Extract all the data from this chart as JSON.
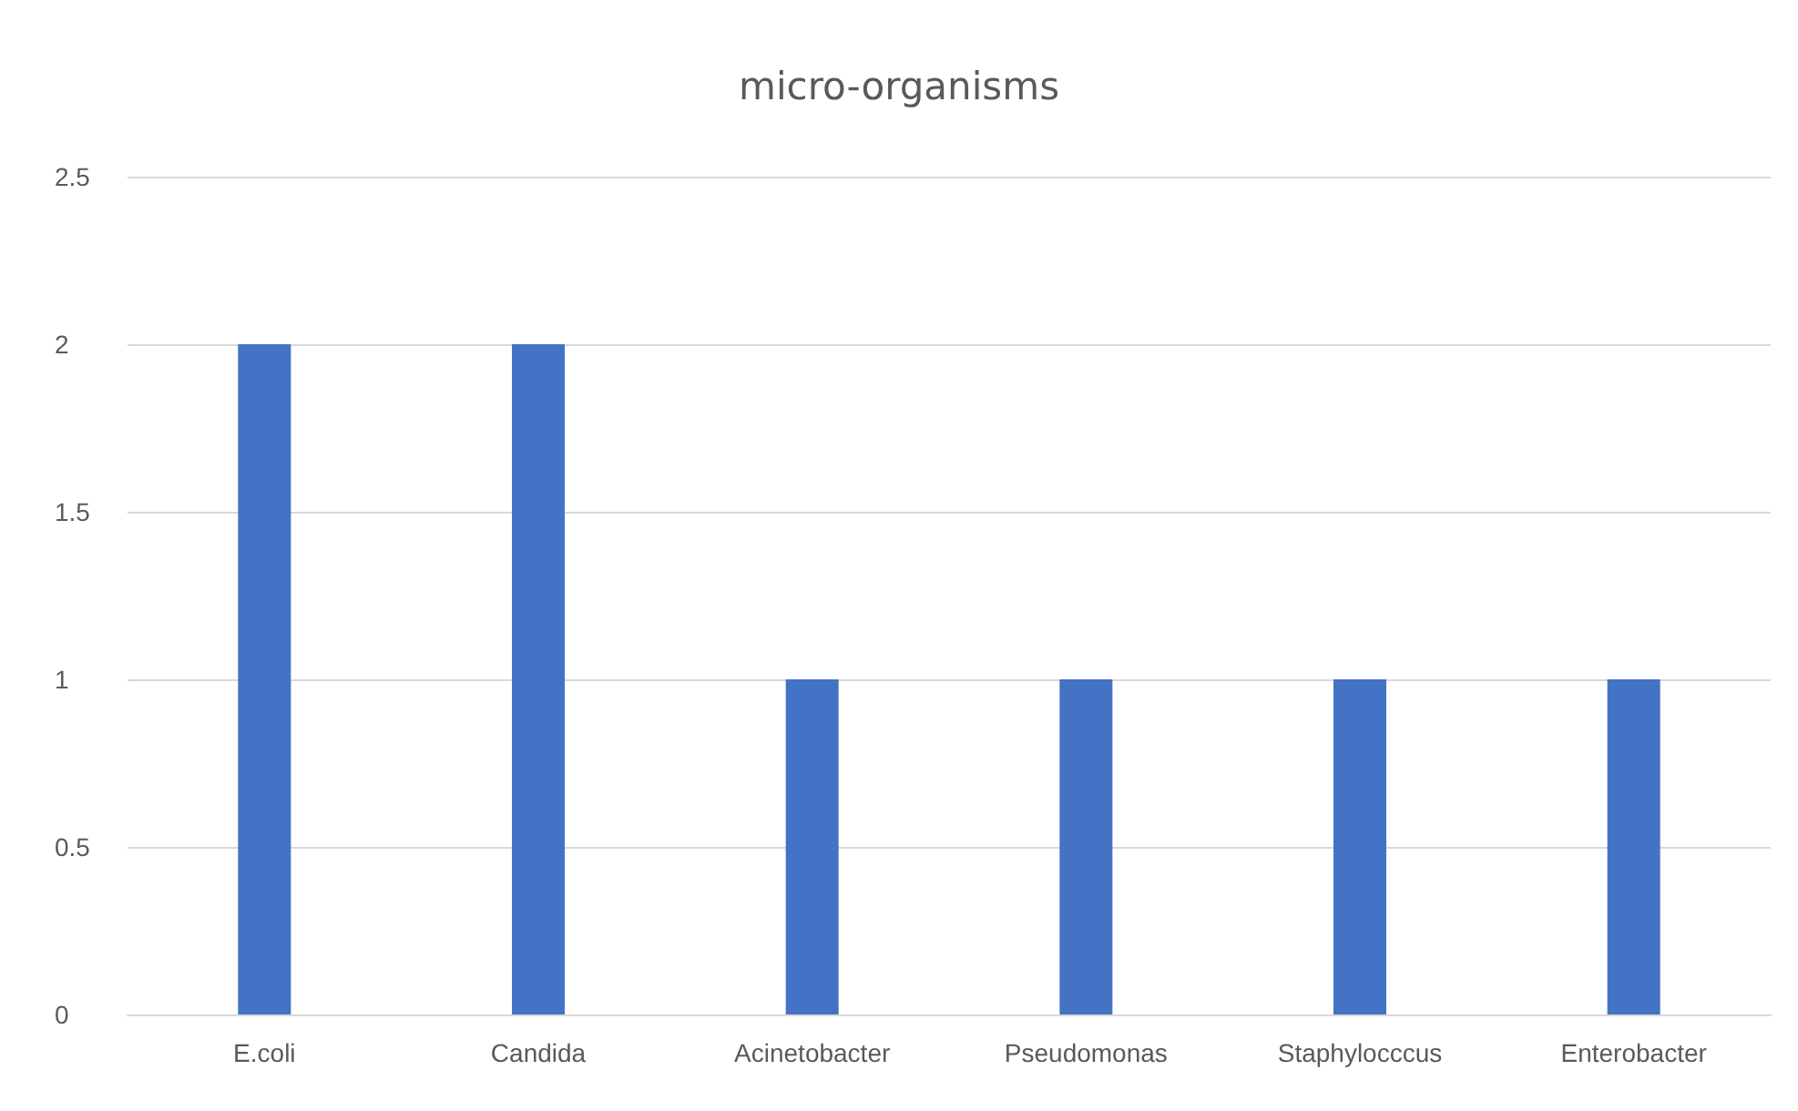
{
  "chart_data": {
    "type": "bar",
    "title": "micro-organisms",
    "categories": [
      "E.coli",
      "Candida",
      "Acinetobacter",
      "Pseudomonas",
      "Staphylocccus",
      "Enterobacter"
    ],
    "values": [
      2,
      2,
      1,
      1,
      1,
      1
    ],
    "color": "#4472c4",
    "ylim": [
      0,
      2.5
    ],
    "yticks": [
      0,
      0.5,
      1,
      1.5,
      2,
      2.5
    ],
    "grid": "y"
  }
}
